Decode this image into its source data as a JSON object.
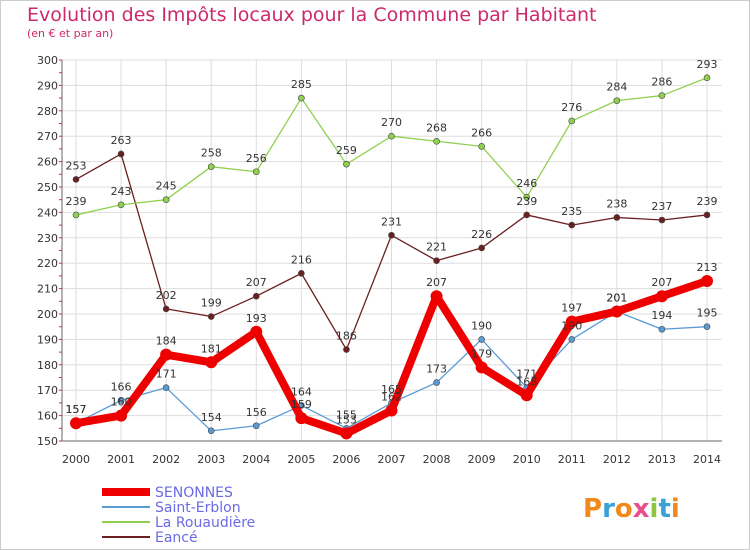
{
  "chart_data": {
    "type": "line",
    "title": "Evolution des Impôts locaux pour la Commune par Habitant",
    "subtitle": "(en € et par an)",
    "xlabel": "",
    "ylabel": "",
    "ylim": [
      150,
      300
    ],
    "y_ticks": [
      "150",
      "160",
      "170",
      "180",
      "190",
      "200",
      "210",
      "220",
      "230",
      "240",
      "250",
      "260",
      "270",
      "280",
      "290",
      "300"
    ],
    "categories": [
      "2000",
      "2001",
      "2002",
      "2003",
      "2004",
      "2005",
      "2006",
      "2007",
      "2008",
      "2009",
      "2010",
      "2011",
      "2012",
      "2013",
      "2014"
    ],
    "grid": true,
    "legend_position": "bottom-left",
    "series": [
      {
        "name": "SENONNES",
        "color": "#ee0000",
        "values": [
          157,
          160,
          184,
          181,
          193,
          159,
          153,
          162,
          207,
          179,
          168,
          197,
          201,
          207,
          213
        ],
        "labels": [
          "157",
          "160",
          "184",
          "181",
          "193",
          "159",
          "153",
          "162",
          "207",
          "179",
          "168",
          "197",
          "201",
          "207",
          "213"
        ]
      },
      {
        "name": "Saint-Erblon",
        "color": "#5b9bd5",
        "values": [
          157,
          166,
          171,
          154,
          156,
          164,
          155,
          165,
          173,
          190,
          171,
          190,
          201,
          194,
          195
        ],
        "labels": [
          "157",
          "166",
          "171",
          "154",
          "156",
          "164",
          "155",
          "165",
          "173",
          "190",
          "171",
          "190",
          "201",
          "194",
          "195"
        ]
      },
      {
        "name": "La Rouaudière",
        "color": "#8fd14f",
        "values": [
          239,
          243,
          245,
          258,
          256,
          285,
          259,
          270,
          268,
          266,
          246,
          276,
          284,
          286,
          293
        ],
        "labels": [
          "239",
          "243",
          "245",
          "258",
          "256",
          "285",
          "259",
          "270",
          "268",
          "266",
          "246",
          "276",
          "284",
          "286",
          "293"
        ]
      },
      {
        "name": "Eancé",
        "color": "#6b1f1f",
        "values": [
          253,
          263,
          202,
          199,
          207,
          216,
          186,
          231,
          221,
          226,
          239,
          235,
          238,
          237,
          239
        ],
        "labels": [
          "253",
          "263",
          "202",
          "199",
          "207",
          "216",
          "186",
          "231",
          "221",
          "226",
          "239",
          "235",
          "238",
          "237",
          "239"
        ]
      }
    ]
  },
  "watermark": "Proxiti"
}
